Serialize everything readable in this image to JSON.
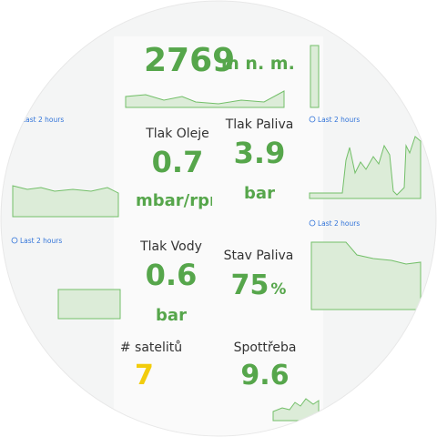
{
  "altitude": {
    "value": "2769",
    "unit": "m n. m."
  },
  "time_ranges": [
    "Last 2 hours",
    "Last 2 hours",
    "Last 2 hours",
    "Last 2 hours"
  ],
  "panels": [
    {
      "title": "Tlak Oleje",
      "value": "0.7",
      "unit": "mbar/rpm"
    },
    {
      "title": "Tlak Paliva",
      "value": "3.9",
      "unit": "bar"
    },
    {
      "title": "Tlak Vody",
      "value": "0.6",
      "unit": "bar"
    },
    {
      "title": "Stav Paliva",
      "value": "75",
      "unit": "%"
    },
    {
      "title": "# satelitů",
      "value": "7"
    },
    {
      "title": "Spottřeba",
      "value": "9.6"
    }
  ]
}
